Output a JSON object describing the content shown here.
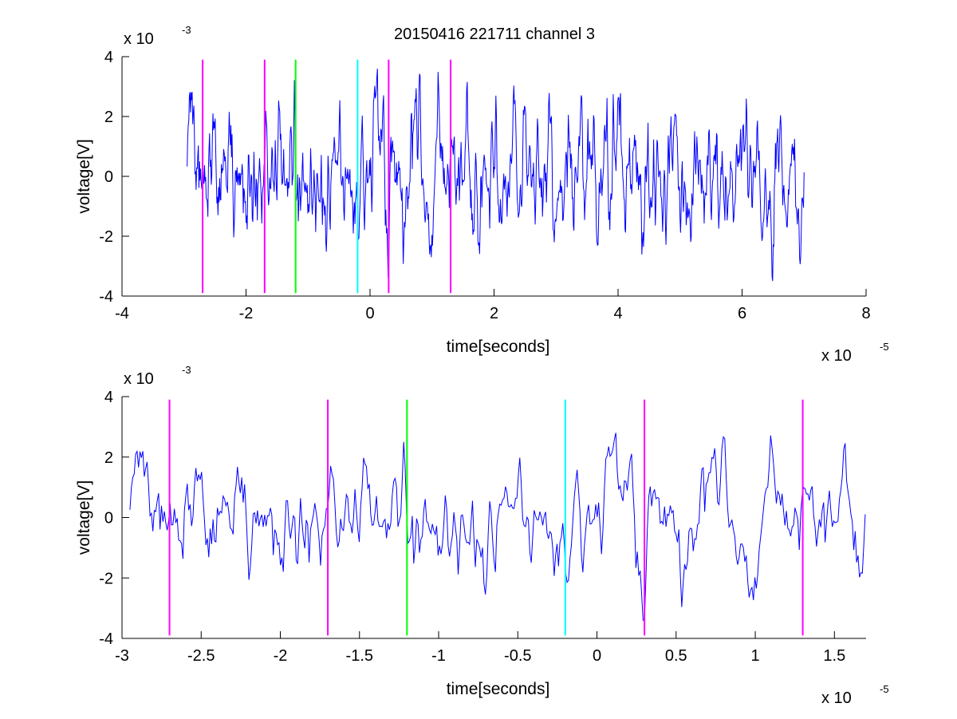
{
  "figure_title": "20150416 221711 channel 3",
  "chart_data": [
    {
      "type": "line",
      "xlabel": "time[seconds]",
      "ylabel": "voltage[V]",
      "x_exponent_label": "x 10",
      "x_exponent_power": "-5",
      "y_exponent_label": "x 10",
      "y_exponent_power": "-3",
      "xlim": [
        -4,
        8
      ],
      "ylim": [
        -4,
        4
      ],
      "xticks": [
        -4,
        -2,
        0,
        2,
        4,
        6,
        8
      ],
      "xtick_labels": [
        "-4",
        "-2",
        "0",
        "2",
        "4",
        "6",
        "8"
      ],
      "yticks": [
        -4,
        -2,
        0,
        2,
        4
      ],
      "ytick_labels": [
        "-4",
        "-2",
        "0",
        "2",
        "4"
      ],
      "grid": false,
      "signal": {
        "color": "#0000ff",
        "x_start": -2.95,
        "x_end": 7.0,
        "y_peak": 3.6,
        "y_trough": -3.5
      },
      "markers": [
        {
          "x": -2.7,
          "color": "#ff00ff"
        },
        {
          "x": -1.7,
          "color": "#ff00ff"
        },
        {
          "x": -1.2,
          "color": "#00ff00"
        },
        {
          "x": -0.2,
          "color": "#00ffff"
        },
        {
          "x": 0.3,
          "color": "#ff00ff"
        },
        {
          "x": 1.3,
          "color": "#ff00ff"
        }
      ],
      "marker_span": [
        -3.9,
        3.9
      ]
    },
    {
      "type": "line",
      "xlabel": "time[seconds]",
      "ylabel": "voltage[V]",
      "x_exponent_label": "x 10",
      "x_exponent_power": "-5",
      "y_exponent_label": "x 10",
      "y_exponent_power": "-3",
      "xlim": [
        -3.0,
        1.7
      ],
      "ylim": [
        -4,
        4
      ],
      "xticks": [
        -3,
        -2.5,
        -2,
        -1.5,
        -1,
        -0.5,
        0,
        0.5,
        1,
        1.5
      ],
      "xtick_labels": [
        "-3",
        "-2.5",
        "-2",
        "-1.5",
        "-1",
        "-0.5",
        "0",
        "0.5",
        "1",
        "1.5"
      ],
      "yticks": [
        -4,
        -2,
        0,
        2,
        4
      ],
      "ytick_labels": [
        "-4",
        "-2",
        "0",
        "2",
        "4"
      ],
      "grid": false,
      "signal": {
        "color": "#0000ff",
        "x_start": -2.95,
        "x_end": 1.7,
        "y_peak": 2.8,
        "y_trough": -3.4
      },
      "markers": [
        {
          "x": -2.7,
          "color": "#ff00ff"
        },
        {
          "x": -1.7,
          "color": "#ff00ff"
        },
        {
          "x": -1.2,
          "color": "#00ff00"
        },
        {
          "x": -0.2,
          "color": "#00ffff"
        },
        {
          "x": 0.3,
          "color": "#ff00ff"
        },
        {
          "x": 1.3,
          "color": "#ff00ff"
        }
      ],
      "marker_span": [
        -3.9,
        3.9
      ]
    }
  ]
}
